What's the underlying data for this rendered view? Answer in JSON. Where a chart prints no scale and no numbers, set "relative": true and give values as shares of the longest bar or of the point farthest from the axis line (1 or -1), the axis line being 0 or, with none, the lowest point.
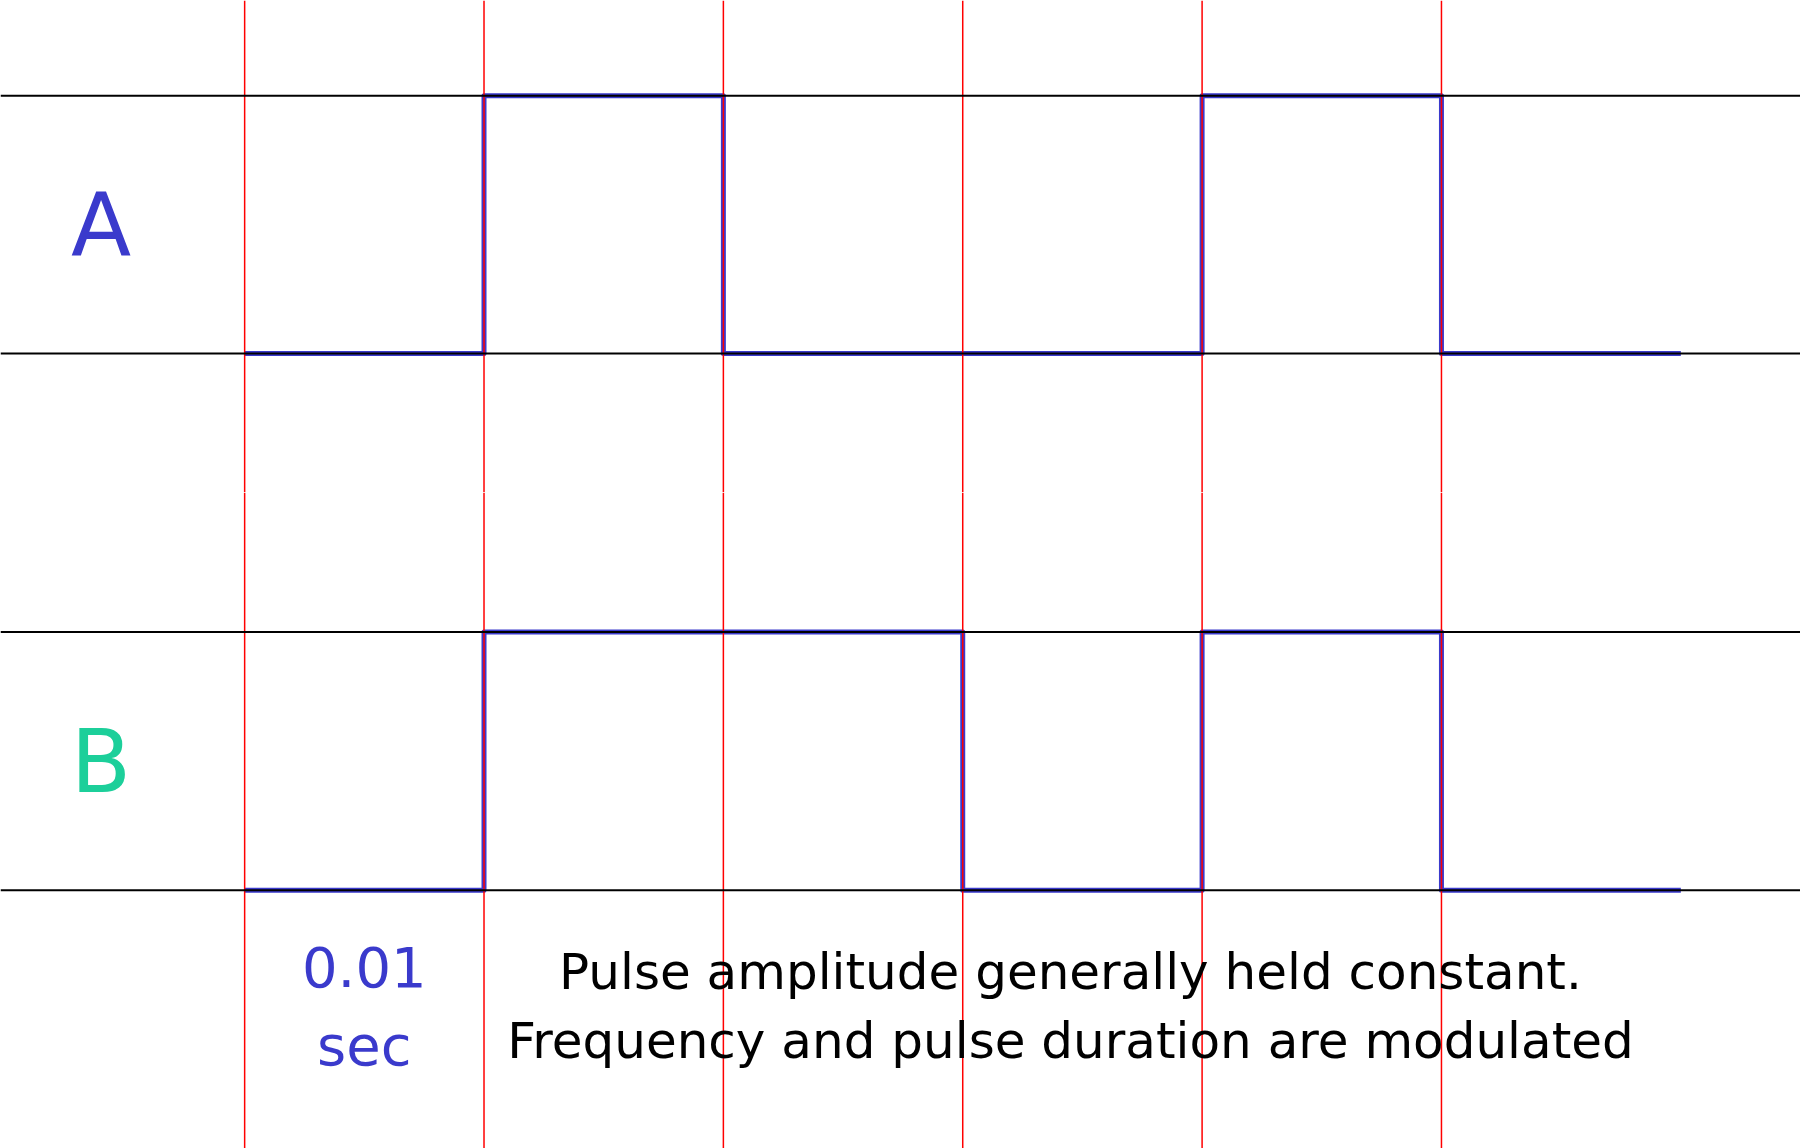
{
  "chart_data": [
    {
      "type": "step",
      "ylabel": "A",
      "relative": true,
      "grid": true,
      "categories": [
        null,
        null,
        null,
        null,
        null,
        null,
        null
      ],
      "series": [
        {
          "color": "#3a3acc",
          "values": [
            0,
            1,
            0,
            0,
            1,
            0,
            0
          ]
        }
      ]
    },
    {
      "type": "step",
      "ylabel": "B",
      "relative": true,
      "grid": true,
      "categories": [
        null,
        null,
        null,
        null,
        null,
        null,
        null
      ],
      "series": [
        {
          "color": "#3a3acc",
          "values": [
            0,
            1,
            1,
            0,
            1,
            0,
            0
          ]
        }
      ],
      "annotations": [
        "0.01 sec",
        "Pulse amplitude generally held constant.\nFrequency and pulse duration are modulated"
      ]
    }
  ]
}
